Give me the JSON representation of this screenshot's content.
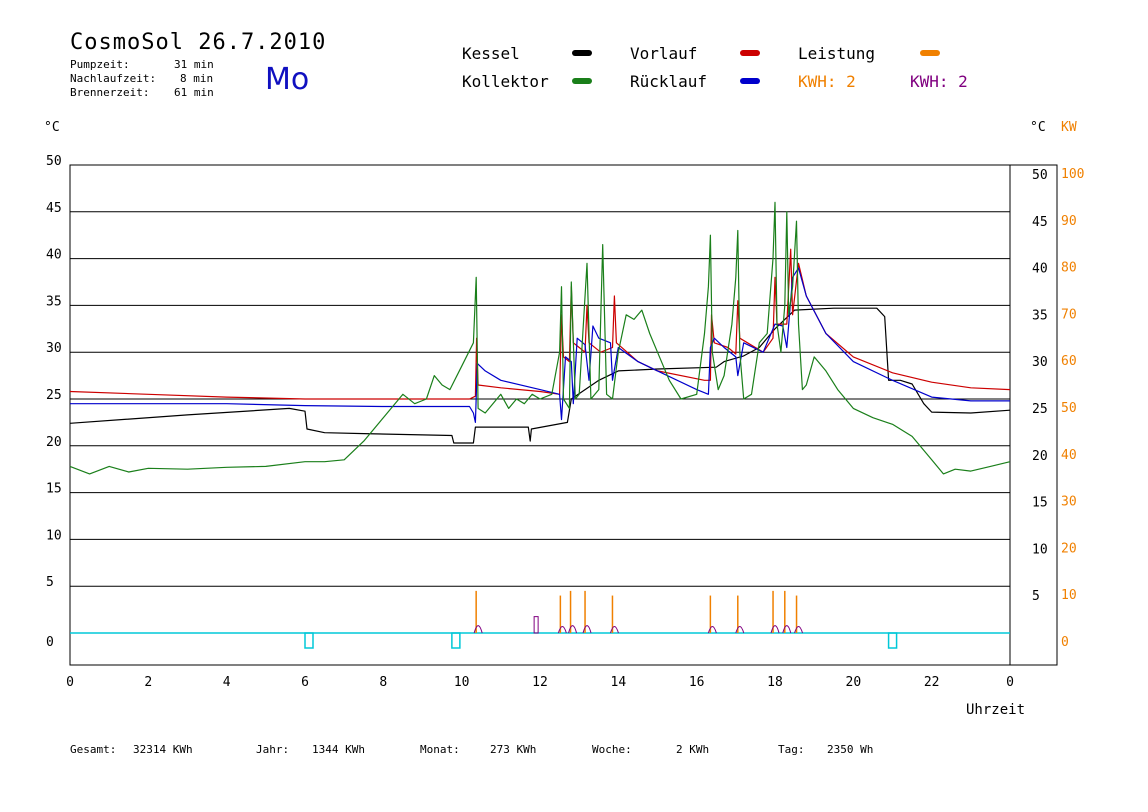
{
  "header": {
    "title": "CosmoSol 26.7.2010",
    "day": "Mo",
    "stats": [
      {
        "label": "Pumpzeit:",
        "value": "31 min"
      },
      {
        "label": "Nachlaufzeit:",
        "value": "8 min"
      },
      {
        "label": "Brennerzeit:",
        "value": "61 min"
      }
    ]
  },
  "legend": {
    "kessel": "Kessel",
    "kollektor": "Kollektor",
    "vorlauf": "Vorlauf",
    "ruecklauf": "Rücklauf",
    "leistung": "Leistung",
    "kwh_orange": "KWH: 2",
    "kwh_purple": "KWH: 2"
  },
  "units": {
    "left": "°C",
    "right_c": "°C",
    "right_kw": "KW"
  },
  "footer": [
    {
      "label": "Gesamt:",
      "value": "32314 KWh"
    },
    {
      "label": "Jahr:",
      "value": "1344 KWh"
    },
    {
      "label": "Monat:",
      "value": "273 KWh"
    },
    {
      "label": "Woche:",
      "value": "2 KWh"
    },
    {
      "label": "Tag:",
      "value": "2350 Wh"
    }
  ],
  "colors": {
    "kessel": "#000000",
    "kollektor": "#1a7f1a",
    "vorlauf": "#cc0000",
    "ruecklauf": "#0000cc",
    "leistung": "#f08000",
    "kwh_purple": "#800080",
    "pump": "#00c8d8"
  },
  "chart_data": {
    "type": "line",
    "xlabel": "Uhrzeit",
    "xlim": [
      0,
      24
    ],
    "x_ticks": [
      "0",
      "2",
      "4",
      "6",
      "8",
      "10",
      "12",
      "14",
      "16",
      "18",
      "20",
      "22",
      "0"
    ],
    "ylim": [
      -2,
      50
    ],
    "y_left_ticks": [
      0,
      5,
      10,
      15,
      20,
      25,
      30,
      35,
      40,
      45,
      50
    ],
    "y_right_ticks": [
      5,
      10,
      15,
      20,
      25,
      30,
      35,
      40,
      45,
      50
    ],
    "y_kw_ticks": [
      0,
      10,
      20,
      30,
      40,
      50,
      60,
      70,
      80,
      90,
      100
    ],
    "grid": true,
    "series": [
      {
        "name": "Kessel",
        "color": "#000000",
        "points": [
          [
            0,
            22.4
          ],
          [
            3,
            23.3
          ],
          [
            5.6,
            24.0
          ],
          [
            6,
            23.7
          ],
          [
            6.05,
            21.8
          ],
          [
            6.5,
            21.4
          ],
          [
            7.5,
            21.3
          ],
          [
            9.75,
            21.1
          ],
          [
            9.8,
            20.3
          ],
          [
            10.3,
            20.3
          ],
          [
            10.35,
            22.0
          ],
          [
            11.7,
            22.0
          ],
          [
            11.75,
            20.5
          ],
          [
            11.78,
            21.8
          ],
          [
            12.7,
            22.5
          ],
          [
            12.8,
            25.0
          ],
          [
            13.5,
            27.0
          ],
          [
            14.0,
            28.0
          ],
          [
            15.0,
            28.2
          ],
          [
            16.5,
            28.4
          ],
          [
            16.7,
            29.0
          ],
          [
            17.2,
            29.6
          ],
          [
            17.6,
            30.5
          ],
          [
            18.0,
            32.5
          ],
          [
            18.5,
            34.5
          ],
          [
            19.5,
            34.7
          ],
          [
            20.6,
            34.7
          ],
          [
            20.8,
            33.8
          ],
          [
            20.9,
            27.0
          ],
          [
            21.2,
            27.0
          ],
          [
            21.5,
            26.6
          ],
          [
            21.8,
            24.5
          ],
          [
            22.0,
            23.6
          ],
          [
            23.0,
            23.5
          ],
          [
            24.0,
            23.8
          ]
        ]
      },
      {
        "name": "Vorlauf",
        "color": "#cc0000",
        "points": [
          [
            0,
            25.8
          ],
          [
            2,
            25.5
          ],
          [
            4,
            25.2
          ],
          [
            6,
            25.0
          ],
          [
            8,
            25.0
          ],
          [
            9,
            25.0
          ],
          [
            10.2,
            25.0
          ],
          [
            10.35,
            25.3
          ],
          [
            10.38,
            31.5
          ],
          [
            10.42,
            26.5
          ],
          [
            11,
            26.2
          ],
          [
            12,
            25.8
          ],
          [
            12.5,
            25.5
          ],
          [
            12.55,
            34
          ],
          [
            12.6,
            29.5
          ],
          [
            12.75,
            29.0
          ],
          [
            12.8,
            37
          ],
          [
            12.85,
            31.0
          ],
          [
            13.0,
            30.5
          ],
          [
            13.15,
            30.0
          ],
          [
            13.2,
            35
          ],
          [
            13.25,
            31.0
          ],
          [
            13.55,
            30.0
          ],
          [
            13.85,
            30.5
          ],
          [
            13.9,
            36
          ],
          [
            13.95,
            31.0
          ],
          [
            14.5,
            29.0
          ],
          [
            15.0,
            28.0
          ],
          [
            16.2,
            27.0
          ],
          [
            16.35,
            27.0
          ],
          [
            16.38,
            34
          ],
          [
            16.45,
            31.0
          ],
          [
            16.8,
            30.5
          ],
          [
            17.0,
            29.8
          ],
          [
            17.05,
            35.5
          ],
          [
            17.1,
            31.5
          ],
          [
            17.7,
            30.0
          ],
          [
            17.95,
            31.5
          ],
          [
            18.0,
            38
          ],
          [
            18.05,
            33.0
          ],
          [
            18.3,
            33.0
          ],
          [
            18.4,
            41
          ],
          [
            18.45,
            34.0
          ],
          [
            18.6,
            39.5
          ],
          [
            18.8,
            36.0
          ],
          [
            19.3,
            32.0
          ],
          [
            20,
            29.5
          ],
          [
            21,
            27.8
          ],
          [
            22,
            26.8
          ],
          [
            23,
            26.2
          ],
          [
            24,
            26.0
          ]
        ]
      },
      {
        "name": "Rücklauf",
        "color": "#0000cc",
        "points": [
          [
            0,
            24.5
          ],
          [
            4,
            24.5
          ],
          [
            6,
            24.3
          ],
          [
            8,
            24.2
          ],
          [
            10.2,
            24.2
          ],
          [
            10.3,
            23.5
          ],
          [
            10.35,
            22.5
          ],
          [
            10.4,
            28.8
          ],
          [
            10.6,
            28.0
          ],
          [
            11,
            27.0
          ],
          [
            12,
            26.0
          ],
          [
            12.5,
            25.5
          ],
          [
            12.55,
            22.8
          ],
          [
            12.65,
            29.5
          ],
          [
            12.8,
            29.0
          ],
          [
            12.85,
            24.5
          ],
          [
            12.95,
            31.5
          ],
          [
            13.15,
            30.8
          ],
          [
            13.25,
            27.0
          ],
          [
            13.35,
            32.8
          ],
          [
            13.5,
            31.5
          ],
          [
            13.8,
            31.0
          ],
          [
            13.85,
            27.0
          ],
          [
            14.0,
            30.5
          ],
          [
            14.5,
            29.0
          ],
          [
            15.0,
            28.0
          ],
          [
            16.0,
            26.0
          ],
          [
            16.3,
            25.5
          ],
          [
            16.35,
            30.5
          ],
          [
            16.45,
            31.5
          ],
          [
            16.7,
            30.5
          ],
          [
            17.0,
            29.5
          ],
          [
            17.05,
            27.5
          ],
          [
            17.2,
            31.0
          ],
          [
            17.7,
            30.0
          ],
          [
            18.0,
            33.0
          ],
          [
            18.2,
            32.8
          ],
          [
            18.3,
            30.5
          ],
          [
            18.45,
            38.0
          ],
          [
            18.6,
            39.0
          ],
          [
            18.8,
            36.0
          ],
          [
            19.3,
            32.0
          ],
          [
            20.0,
            29.0
          ],
          [
            21.0,
            27.0
          ],
          [
            22.0,
            25.2
          ],
          [
            23.0,
            24.8
          ],
          [
            24.0,
            24.8
          ]
        ]
      },
      {
        "name": "Kollektor",
        "color": "#1a7f1a",
        "points": [
          [
            0,
            17.8
          ],
          [
            0.5,
            17.0
          ],
          [
            1,
            17.8
          ],
          [
            1.5,
            17.2
          ],
          [
            2,
            17.6
          ],
          [
            3,
            17.5
          ],
          [
            4,
            17.7
          ],
          [
            5,
            17.8
          ],
          [
            6,
            18.3
          ],
          [
            6.5,
            18.3
          ],
          [
            7,
            18.5
          ],
          [
            7.5,
            20.5
          ],
          [
            8,
            23.0
          ],
          [
            8.5,
            25.5
          ],
          [
            8.8,
            24.5
          ],
          [
            9.1,
            25.0
          ],
          [
            9.3,
            27.5
          ],
          [
            9.5,
            26.5
          ],
          [
            9.7,
            26.0
          ],
          [
            10.0,
            28.5
          ],
          [
            10.3,
            31.0
          ],
          [
            10.37,
            38.0
          ],
          [
            10.42,
            24.0
          ],
          [
            10.6,
            23.5
          ],
          [
            11.0,
            25.5
          ],
          [
            11.2,
            24.0
          ],
          [
            11.4,
            25.0
          ],
          [
            11.6,
            24.5
          ],
          [
            11.8,
            25.5
          ],
          [
            12.0,
            25.0
          ],
          [
            12.3,
            25.5
          ],
          [
            12.5,
            30.0
          ],
          [
            12.55,
            37.0
          ],
          [
            12.6,
            25.0
          ],
          [
            12.75,
            24.0
          ],
          [
            12.8,
            37.5
          ],
          [
            12.9,
            25.0
          ],
          [
            13.0,
            25.5
          ],
          [
            13.2,
            39.5
          ],
          [
            13.3,
            25.0
          ],
          [
            13.5,
            26.0
          ],
          [
            13.6,
            41.5
          ],
          [
            13.7,
            25.5
          ],
          [
            13.85,
            25.0
          ],
          [
            14.0,
            30.0
          ],
          [
            14.2,
            34.0
          ],
          [
            14.4,
            33.5
          ],
          [
            14.6,
            34.5
          ],
          [
            14.8,
            32.0
          ],
          [
            15.0,
            30.0
          ],
          [
            15.3,
            27.0
          ],
          [
            15.6,
            25.0
          ],
          [
            16.0,
            25.5
          ],
          [
            16.2,
            32.0
          ],
          [
            16.3,
            37.0
          ],
          [
            16.35,
            42.5
          ],
          [
            16.4,
            30.0
          ],
          [
            16.55,
            26.0
          ],
          [
            16.7,
            27.5
          ],
          [
            16.9,
            33.0
          ],
          [
            17.0,
            38.0
          ],
          [
            17.05,
            43.0
          ],
          [
            17.1,
            30.0
          ],
          [
            17.2,
            25.0
          ],
          [
            17.4,
            25.5
          ],
          [
            17.6,
            31.0
          ],
          [
            17.8,
            32.0
          ],
          [
            17.95,
            40.0
          ],
          [
            18.0,
            46.0
          ],
          [
            18.05,
            33.0
          ],
          [
            18.15,
            30.0
          ],
          [
            18.25,
            35.0
          ],
          [
            18.3,
            45.0
          ],
          [
            18.35,
            34.0
          ],
          [
            18.45,
            37.0
          ],
          [
            18.55,
            44.0
          ],
          [
            18.6,
            33.0
          ],
          [
            18.7,
            26.0
          ],
          [
            18.8,
            26.5
          ],
          [
            19.0,
            29.5
          ],
          [
            19.3,
            28.0
          ],
          [
            19.6,
            26.0
          ],
          [
            20.0,
            24.0
          ],
          [
            20.5,
            23.0
          ],
          [
            21.0,
            22.3
          ],
          [
            21.5,
            21.0
          ],
          [
            22.0,
            18.5
          ],
          [
            22.3,
            17.0
          ],
          [
            22.6,
            17.5
          ],
          [
            23.0,
            17.3
          ],
          [
            23.5,
            17.8
          ],
          [
            24.0,
            18.3
          ]
        ]
      }
    ],
    "leistung_spikes_kw": [
      [
        10.37,
        9
      ],
      [
        12.52,
        8
      ],
      [
        12.78,
        9
      ],
      [
        13.15,
        9
      ],
      [
        13.85,
        8
      ],
      [
        16.35,
        8
      ],
      [
        17.05,
        8
      ],
      [
        17.95,
        9
      ],
      [
        18.25,
        9
      ],
      [
        18.55,
        8
      ]
    ],
    "pump_pulses": [
      [
        6.0,
        6.1
      ],
      [
        9.75,
        9.85
      ],
      [
        20.9,
        21.05
      ]
    ]
  }
}
